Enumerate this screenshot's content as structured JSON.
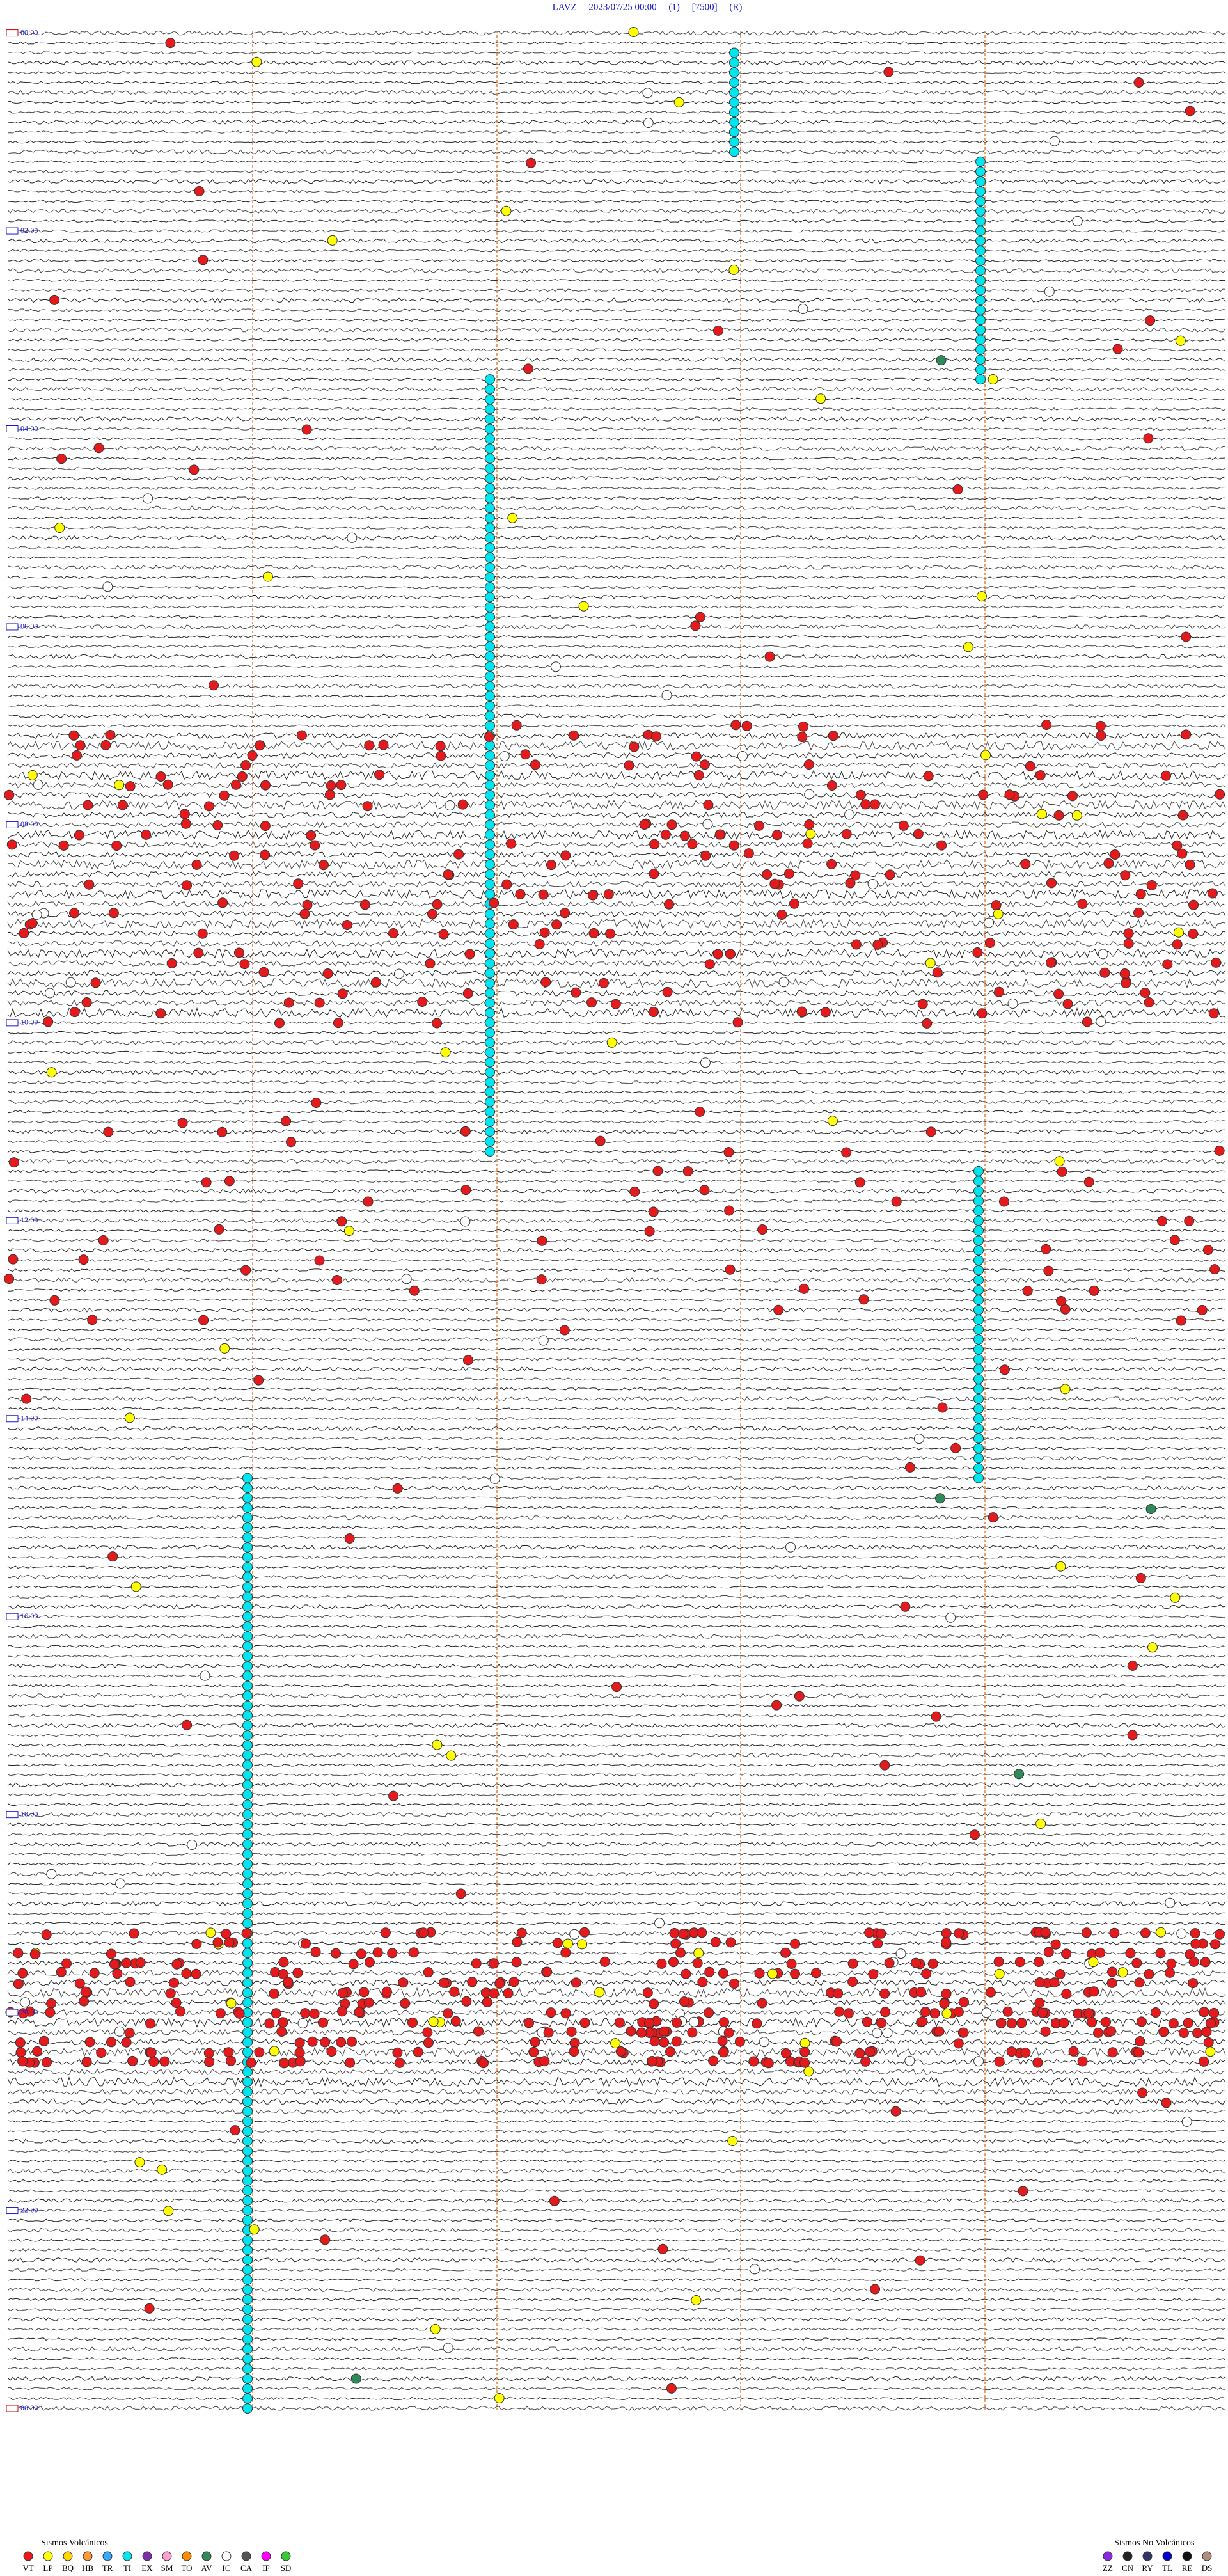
{
  "header": {
    "title": "LAVZ     2023/07/25 00:00     (1)     [7500]     (R)"
  },
  "hour_labels": [
    "00:00",
    "02:00",
    "04:00",
    "06:00",
    "08:00",
    "10:00",
    "12:00",
    "14:00",
    "16:00",
    "18:00",
    "20:00",
    "22:00",
    "00:00"
  ],
  "legend": {
    "volcanic": {
      "title": "Sismos Volcánicos",
      "items": [
        {
          "code": "VT",
          "color": "#e41a1c"
        },
        {
          "code": "LP",
          "color": "#ffff00"
        },
        {
          "code": "BQ",
          "color": "#ffd700"
        },
        {
          "code": "HB",
          "color": "#ff9933"
        },
        {
          "code": "TR",
          "color": "#33aaff"
        },
        {
          "code": "TI",
          "color": "#00e5ee"
        },
        {
          "code": "EX",
          "color": "#7b2fa8"
        },
        {
          "code": "SM",
          "color": "#ff9ecf"
        },
        {
          "code": "TO",
          "color": "#ff8c00"
        },
        {
          "code": "AV",
          "color": "#2e8b57"
        },
        {
          "code": "IC",
          "color": "#ffffff"
        },
        {
          "code": "CA",
          "color": "#555555"
        },
        {
          "code": "IF",
          "color": "#ff00ff"
        },
        {
          "code": "SD",
          "color": "#33cc33"
        }
      ]
    },
    "non_volcanic": {
      "title": "Sismos No Volcánicos",
      "items": [
        {
          "code": "ZZ",
          "color": "#8a2be2"
        },
        {
          "code": "CN",
          "color": "#222222"
        },
        {
          "code": "RY",
          "color": "#333366"
        },
        {
          "code": "TL",
          "color": "#0000cc"
        },
        {
          "code": "RE",
          "color": "#111111"
        },
        {
          "code": "DS",
          "color": "#b0907a"
        }
      ]
    }
  }
}
